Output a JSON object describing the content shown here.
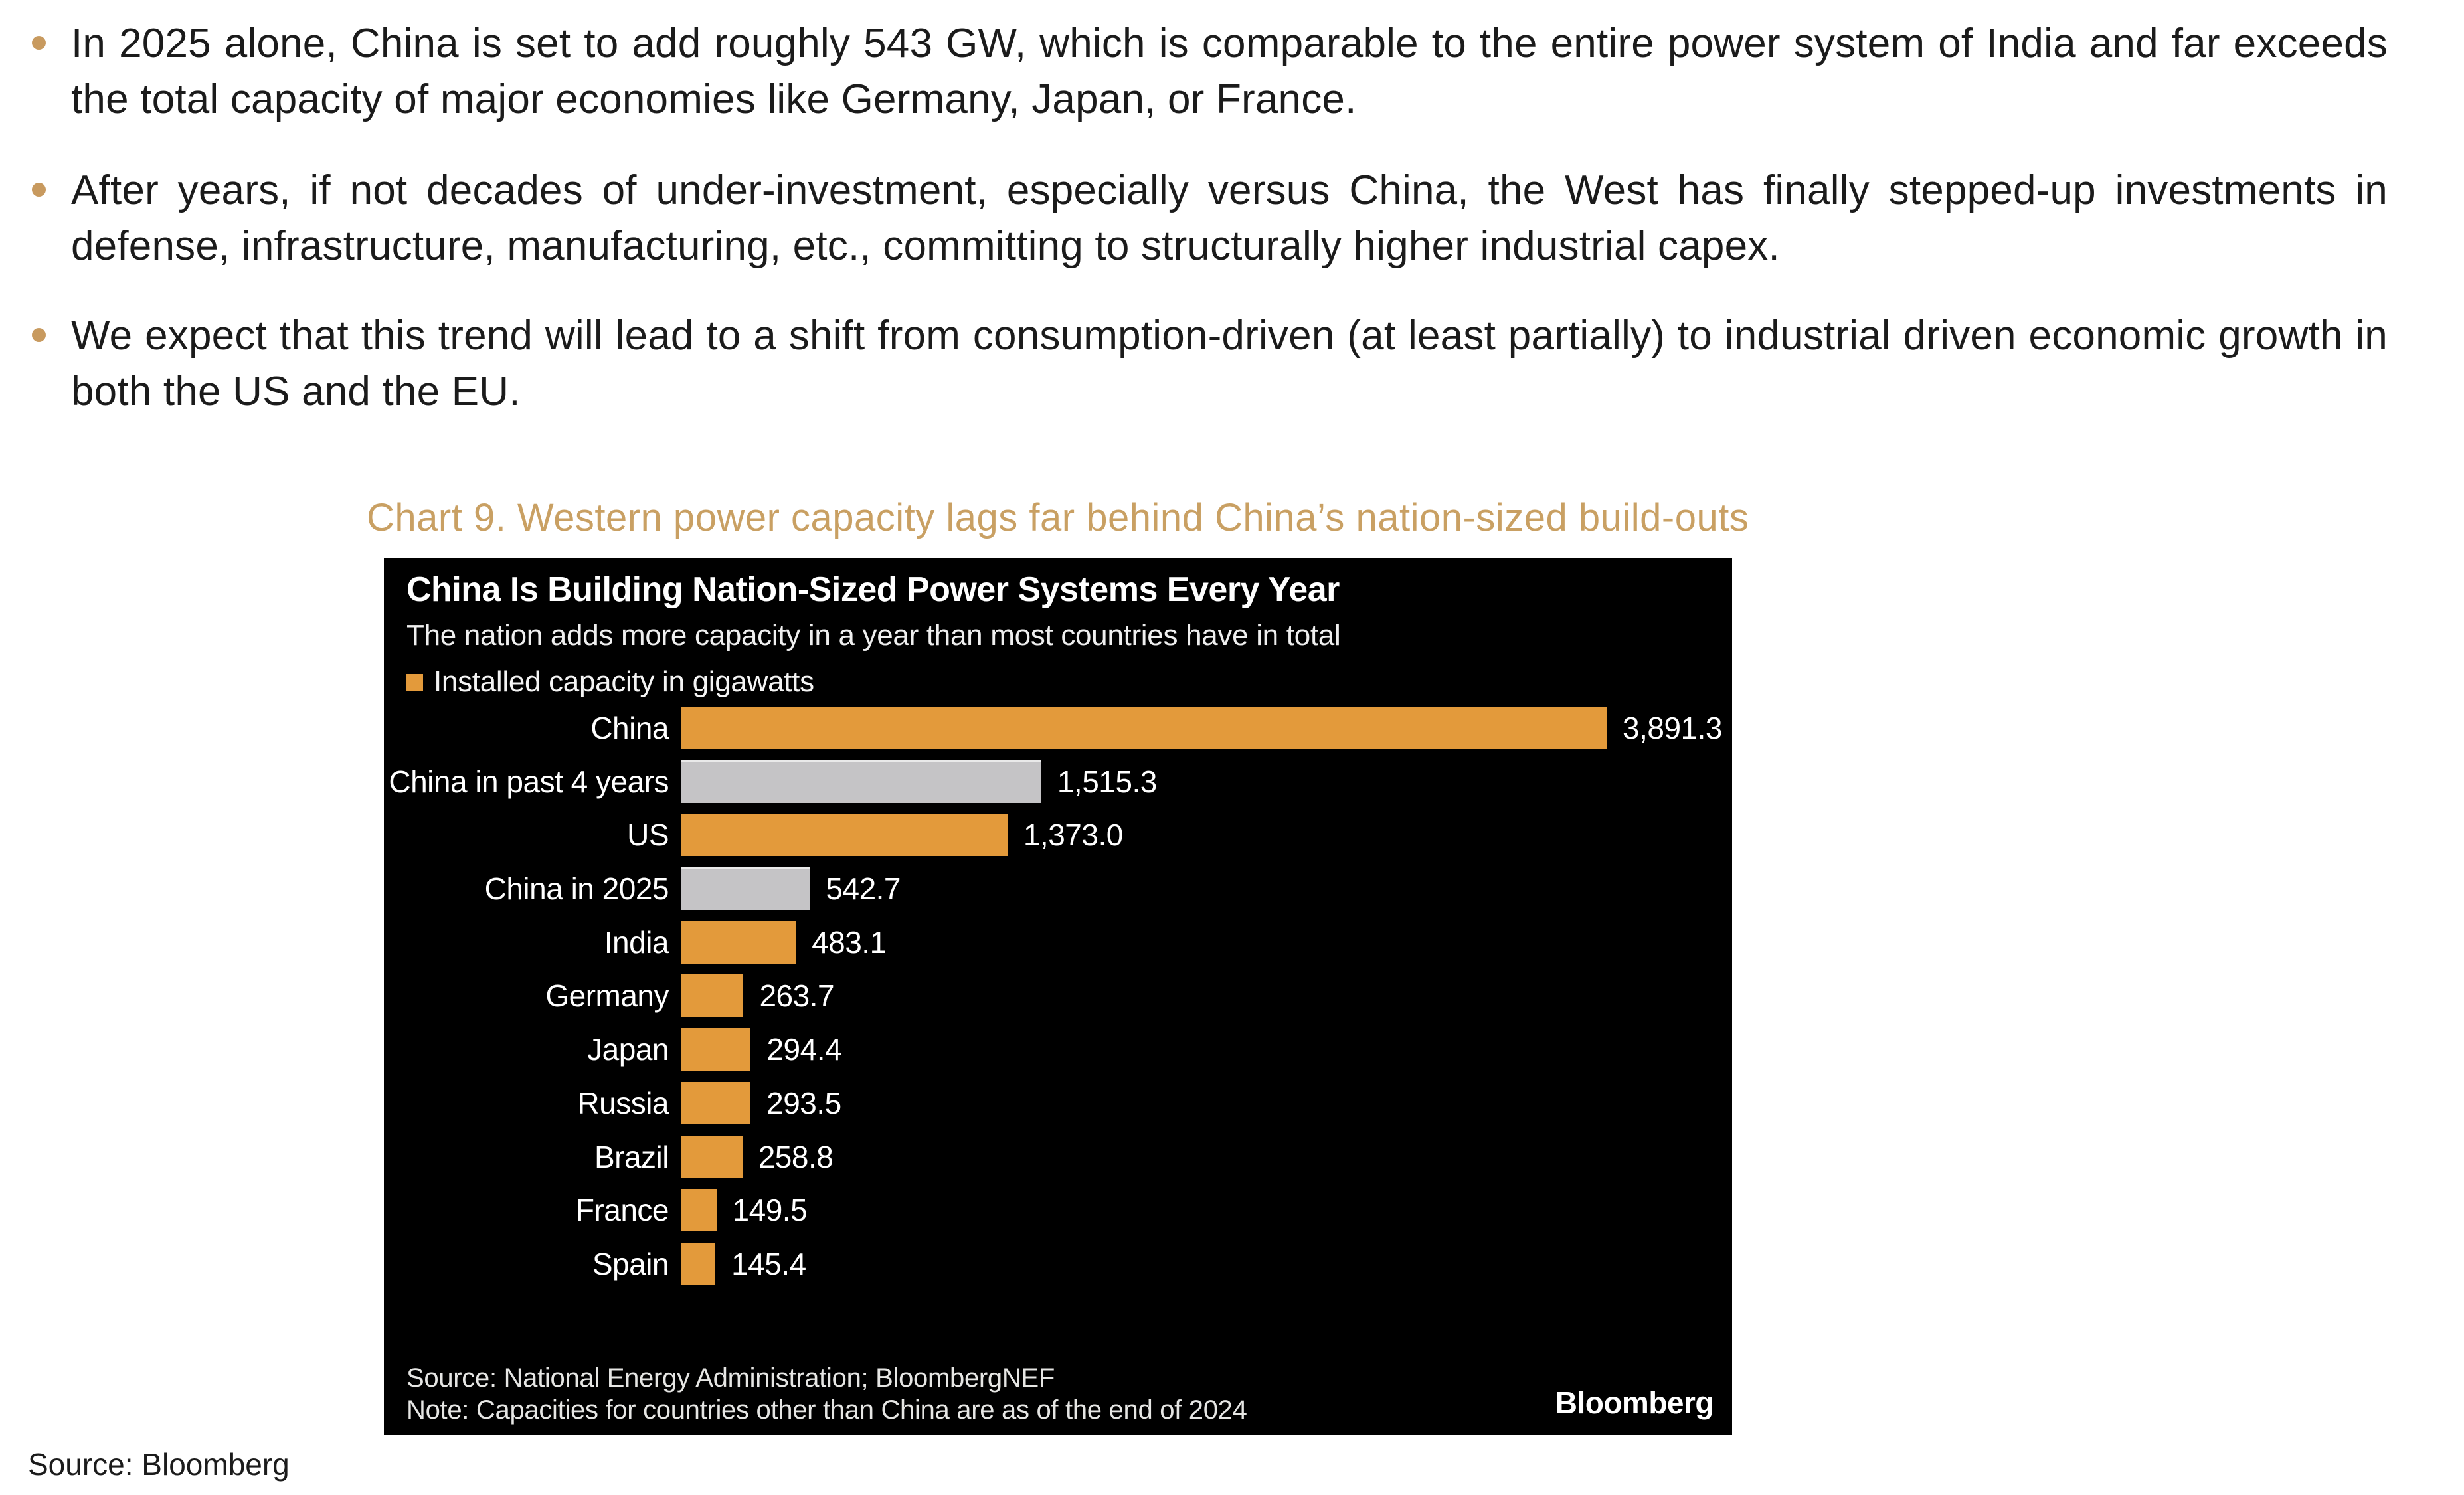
{
  "bullets": [
    "In 2025 alone, China is set to add roughly 543 GW, which is comparable to the entire power system of India and far exceeds the total capacity of major economies like Germany, Japan, or France.",
    "After years, if not decades of under-investment, especially versus China, the West has finally stepped-up investments in defense, infrastructure, manufacturing, etc., committing to structurally higher industrial capex.",
    "We expect that this trend will lead to a shift from consumption-driven (at least partially) to industrial driven economic growth in both the US and the EU."
  ],
  "figure_heading": "Chart 9. Western power capacity lags far behind China’s nation-sized build-outs",
  "page_source": "Source: Bloomberg",
  "colors": {
    "bullet_dot": "#c89a5f",
    "figure_heading": "#c9a063",
    "chart_background": "#000000",
    "bar_orange": "#e39a3b",
    "bar_gray": "#c5c4c6"
  },
  "chart_data": {
    "type": "bar",
    "orientation": "horizontal",
    "title": "China Is Building Nation-Sized Power Systems Every Year",
    "subtitle": "The nation adds more capacity in a year than most countries have in total",
    "legend_label": "Installed capacity in gigawatts",
    "categories": [
      "China",
      "China in past 4 years",
      "US",
      "China in 2025",
      "India",
      "Germany",
      "Japan",
      "Russia",
      "Brazil",
      "France",
      "Spain"
    ],
    "values": [
      3891.3,
      1515.3,
      1373.0,
      542.7,
      483.1,
      263.7,
      294.4,
      293.5,
      258.8,
      149.5,
      145.4
    ],
    "value_labels": [
      "3,891.3",
      "1,515.3",
      "1,373.0",
      "542.7",
      "483.1",
      "263.7",
      "294.4",
      "293.5",
      "258.8",
      "149.5",
      "145.4"
    ],
    "gray_indices": [
      1,
      3
    ],
    "xlim": [
      0,
      3891.3
    ],
    "grid": "off",
    "legend_position": "top-left",
    "source": "Source: National Energy Administration; BloombergNEF",
    "note": "Note: Capacities for countries other than China are as of the end of 2024",
    "brand": "Bloomberg"
  }
}
